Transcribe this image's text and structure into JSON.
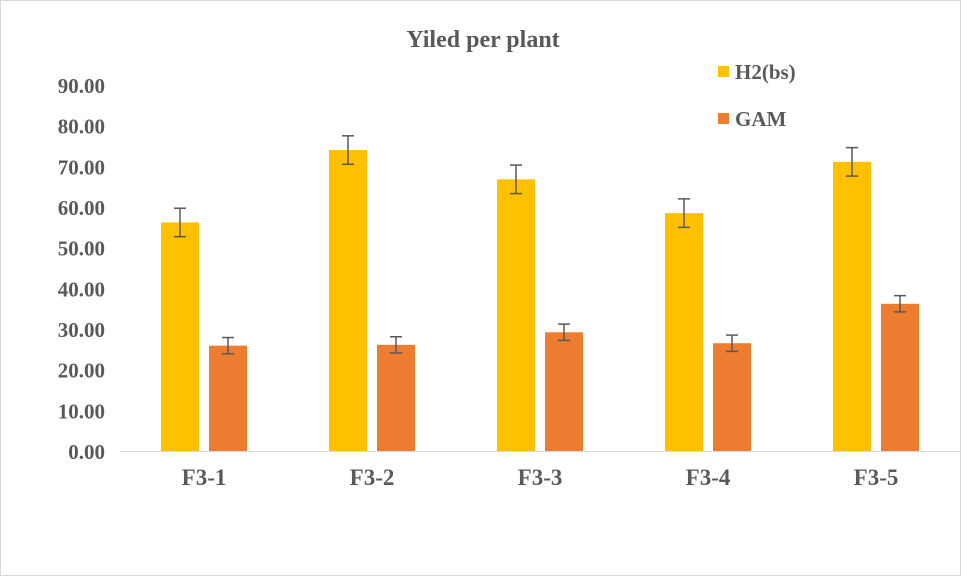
{
  "chart_data": {
    "type": "bar",
    "title": "Yiled per plant",
    "xlabel": "",
    "ylabel": "",
    "categories": [
      "F3-1",
      "F3-2",
      "F3-3",
      "F3-4",
      "F3-5"
    ],
    "ylim": [
      0,
      90
    ],
    "yticks": [
      "0.00",
      "10.00",
      "20.00",
      "30.00",
      "40.00",
      "50.00",
      "60.00",
      "70.00",
      "80.00",
      "90.00"
    ],
    "grid": false,
    "legend_position": "top-right",
    "series": [
      {
        "name": "H2(bs)",
        "color": "#FFC000",
        "values": [
          56.2,
          74.0,
          66.8,
          58.5,
          71.1
        ],
        "errors": [
          3.5,
          3.5,
          3.5,
          3.5,
          3.5
        ]
      },
      {
        "name": "GAM",
        "color": "#ED7D31",
        "values": [
          25.9,
          26.1,
          29.2,
          26.5,
          36.2
        ],
        "errors": [
          2.0,
          2.0,
          2.0,
          2.0,
          2.0
        ]
      }
    ]
  }
}
